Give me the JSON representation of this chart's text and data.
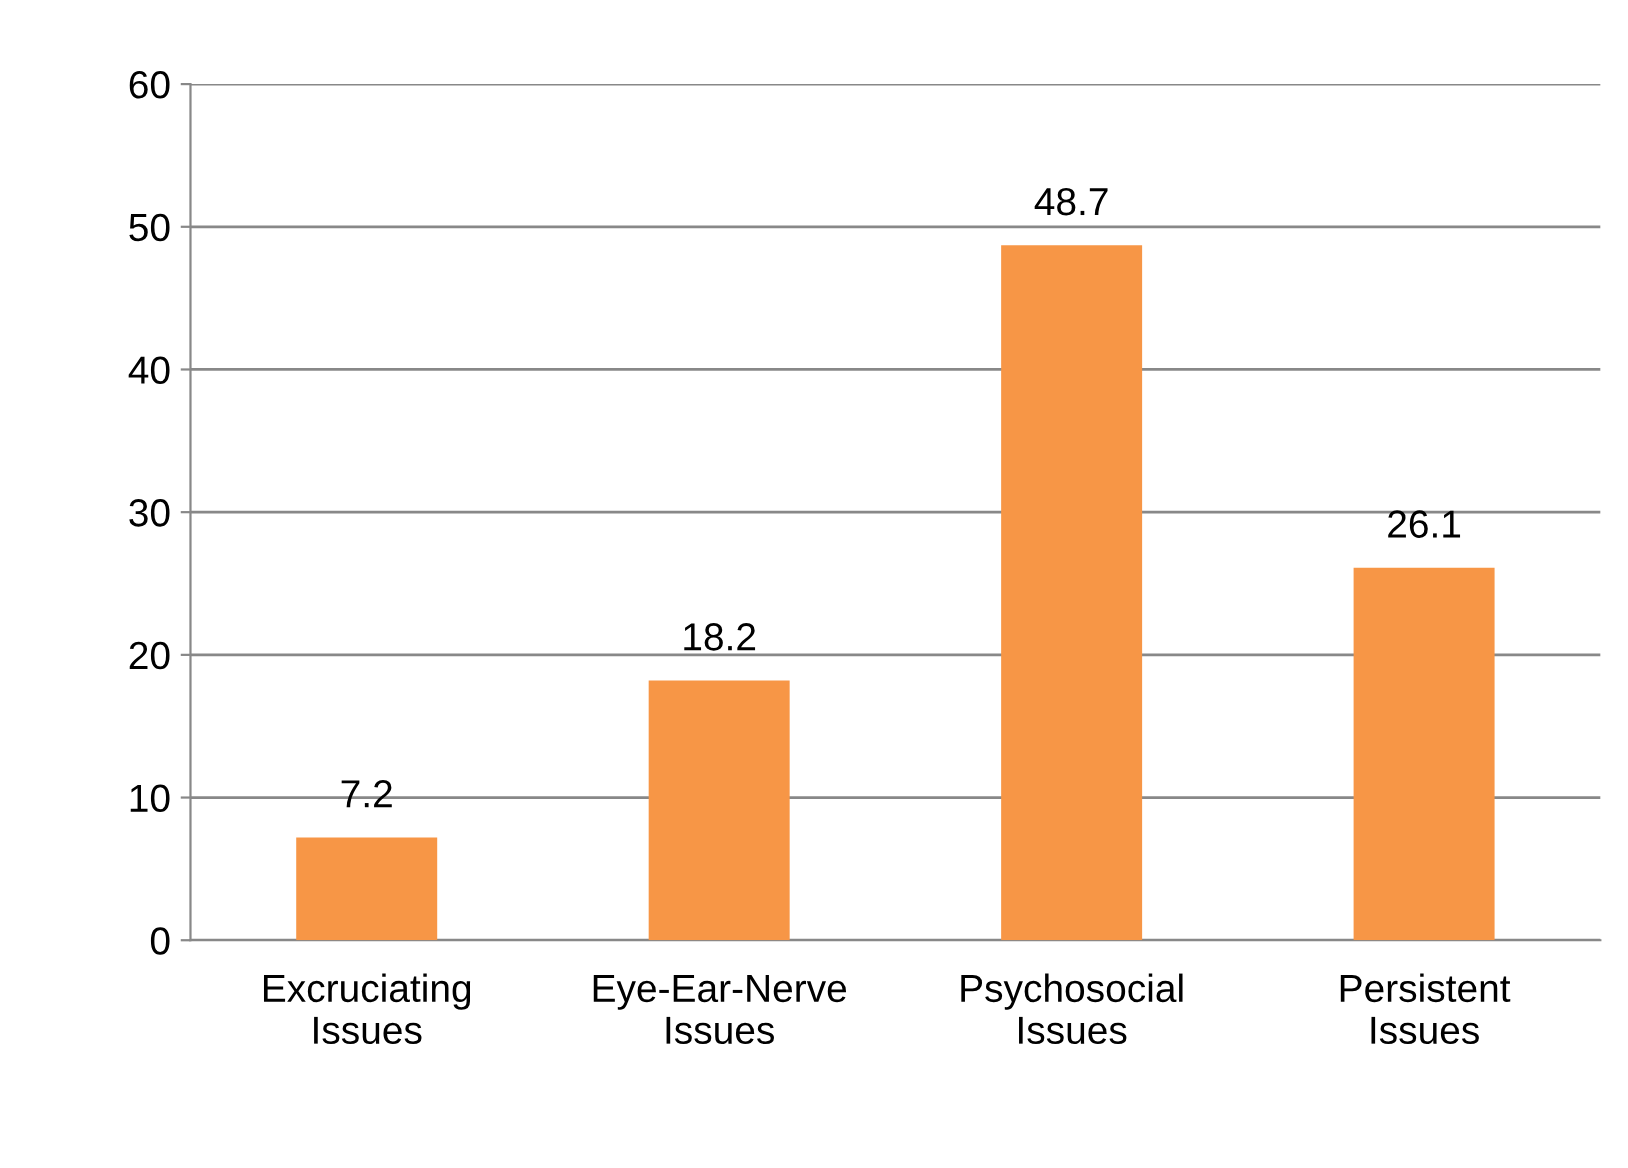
{
  "chart_data": {
    "type": "bar",
    "categories": [
      "Excruciating\nIssues",
      "Eye-Ear-Nerve\nIssues",
      "Psychosocial\nIssues",
      "Persistent\nIssues"
    ],
    "values": [
      7.2,
      18.2,
      48.7,
      26.1
    ],
    "color": "#f79646",
    "ylim": [
      0,
      60
    ],
    "yticks": [
      0,
      10,
      20,
      30,
      40,
      50,
      60
    ],
    "grid": "y",
    "data_labels": true
  }
}
